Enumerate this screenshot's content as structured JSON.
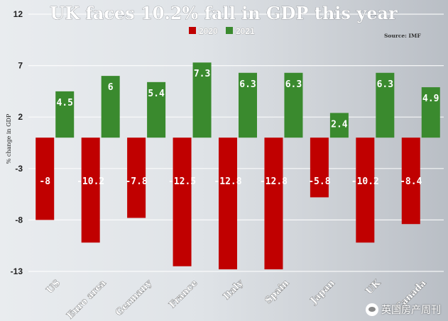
{
  "chart_data": {
    "type": "bar",
    "title": "UK faces 10.2% fall in GDP this year",
    "source": "Source: IMF",
    "ylabel": "% change in GDP",
    "categories": [
      "US",
      "Euro area",
      "Germany",
      "France",
      "Italy",
      "Spain",
      "Japan",
      "UK",
      "Canada"
    ],
    "series": [
      {
        "name": "2020",
        "color": "#c00000",
        "values": [
          -8,
          -10.2,
          -7.8,
          -12.5,
          -12.8,
          -12.8,
          -5.8,
          -10.2,
          -8.4
        ]
      },
      {
        "name": "2021",
        "color": "#3a8a2e",
        "values": [
          4.5,
          6,
          5.4,
          7.3,
          6.3,
          6.3,
          2.4,
          6.3,
          4.9
        ]
      }
    ],
    "yticks": [
      12,
      7,
      2,
      -3,
      -8,
      -13
    ],
    "ylim": [
      -13,
      12
    ],
    "grid": true,
    "legend": "top"
  },
  "watermark": {
    "text": "英国房产周刊",
    "icon": "wechat-icon"
  }
}
